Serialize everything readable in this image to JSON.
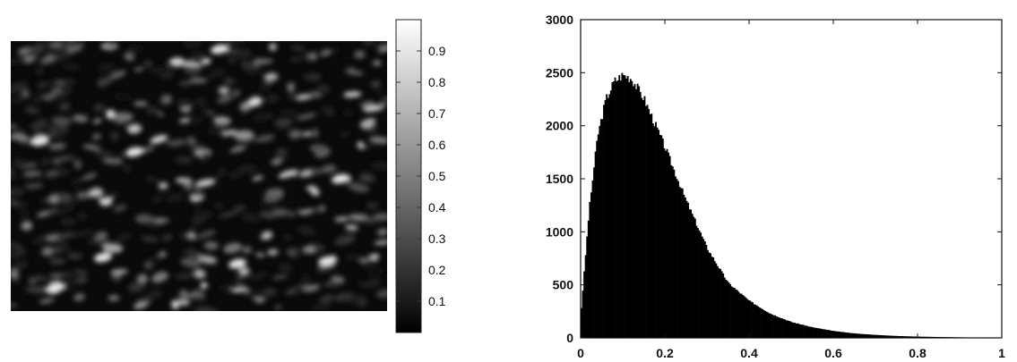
{
  "chart_data": [
    {
      "type": "heatmap",
      "title": "",
      "colormap": "gray",
      "colorbar": {
        "ticks": [
          "0.9",
          "0.8",
          "0.7",
          "0.6",
          "0.5",
          "0.4",
          "0.3",
          "0.2",
          "0.1"
        ],
        "tick_values": [
          0.9,
          0.8,
          0.7,
          0.6,
          0.5,
          0.4,
          0.3,
          0.2,
          0.1
        ],
        "range": [
          0,
          1
        ]
      },
      "description_values": "speckle-like intensity pattern, mostly dark with scattered bright blobs"
    },
    {
      "type": "bar",
      "title": "",
      "xlabel": "",
      "ylabel": "",
      "xlim": [
        0,
        1
      ],
      "ylim": [
        0,
        3000
      ],
      "xticks": [
        "0",
        "0.2",
        "0.4",
        "0.6",
        "0.8",
        "1"
      ],
      "xtick_values": [
        0,
        0.2,
        0.4,
        0.6,
        0.8,
        1
      ],
      "yticks": [
        "0",
        "500",
        "1000",
        "1500",
        "2000",
        "2500",
        "3000"
      ],
      "ytick_values": [
        0,
        500,
        1000,
        1500,
        2000,
        2500,
        3000
      ],
      "profile": {
        "x": [
          0,
          0.02,
          0.04,
          0.06,
          0.08,
          0.1,
          0.12,
          0.15,
          0.2,
          0.25,
          0.3,
          0.35,
          0.4,
          0.45,
          0.5,
          0.55,
          0.6,
          0.65,
          0.7,
          0.75,
          0.8,
          0.85,
          0.9,
          0.95,
          1.0
        ],
        "y": [
          200,
          1200,
          1900,
          2250,
          2420,
          2480,
          2450,
          2260,
          1800,
          1300,
          850,
          520,
          350,
          230,
          150,
          100,
          65,
          42,
          28,
          18,
          12,
          8,
          5,
          3,
          2
        ]
      }
    }
  ]
}
